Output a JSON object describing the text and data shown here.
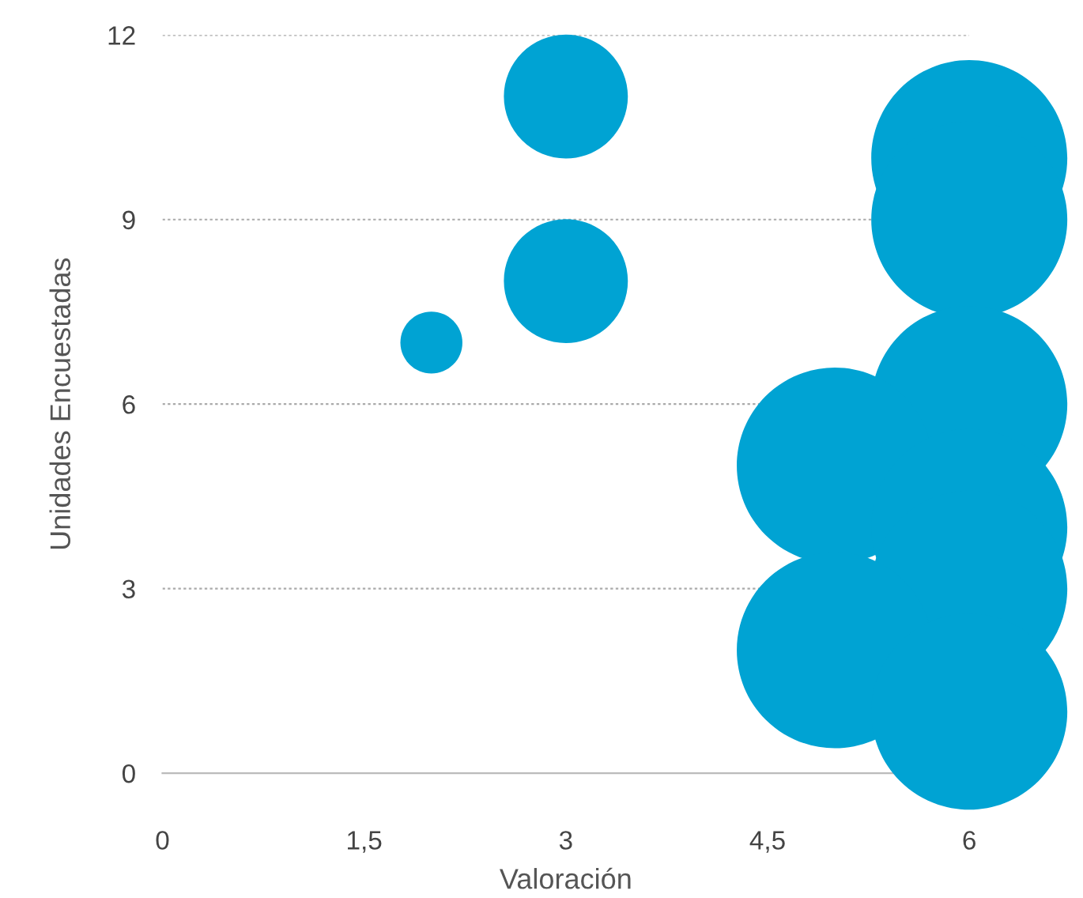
{
  "chart_data": {
    "type": "bubble",
    "xlabel": "Valoración",
    "ylabel": "Unidades Encuestadas",
    "x": [
      2,
      3,
      3,
      6,
      6,
      6,
      5,
      6,
      6,
      5,
      6
    ],
    "values": [
      7,
      8,
      11,
      10,
      9,
      6,
      5,
      4,
      3,
      2,
      1
    ],
    "sizes": [
      0.1,
      0.4,
      0.4,
      1,
      1,
      1,
      1,
      1,
      1,
      1,
      1
    ],
    "color": "#00a3d3",
    "xlim": [
      0,
      6
    ],
    "ylim": [
      0,
      12
    ],
    "xticks": [
      0,
      {
        "value": 1.5,
        "label": "1,5"
      },
      3,
      {
        "value": 4.5,
        "label": "4,5"
      },
      6
    ],
    "yticks": [
      0,
      3,
      6,
      9,
      12
    ],
    "grid": "y"
  }
}
